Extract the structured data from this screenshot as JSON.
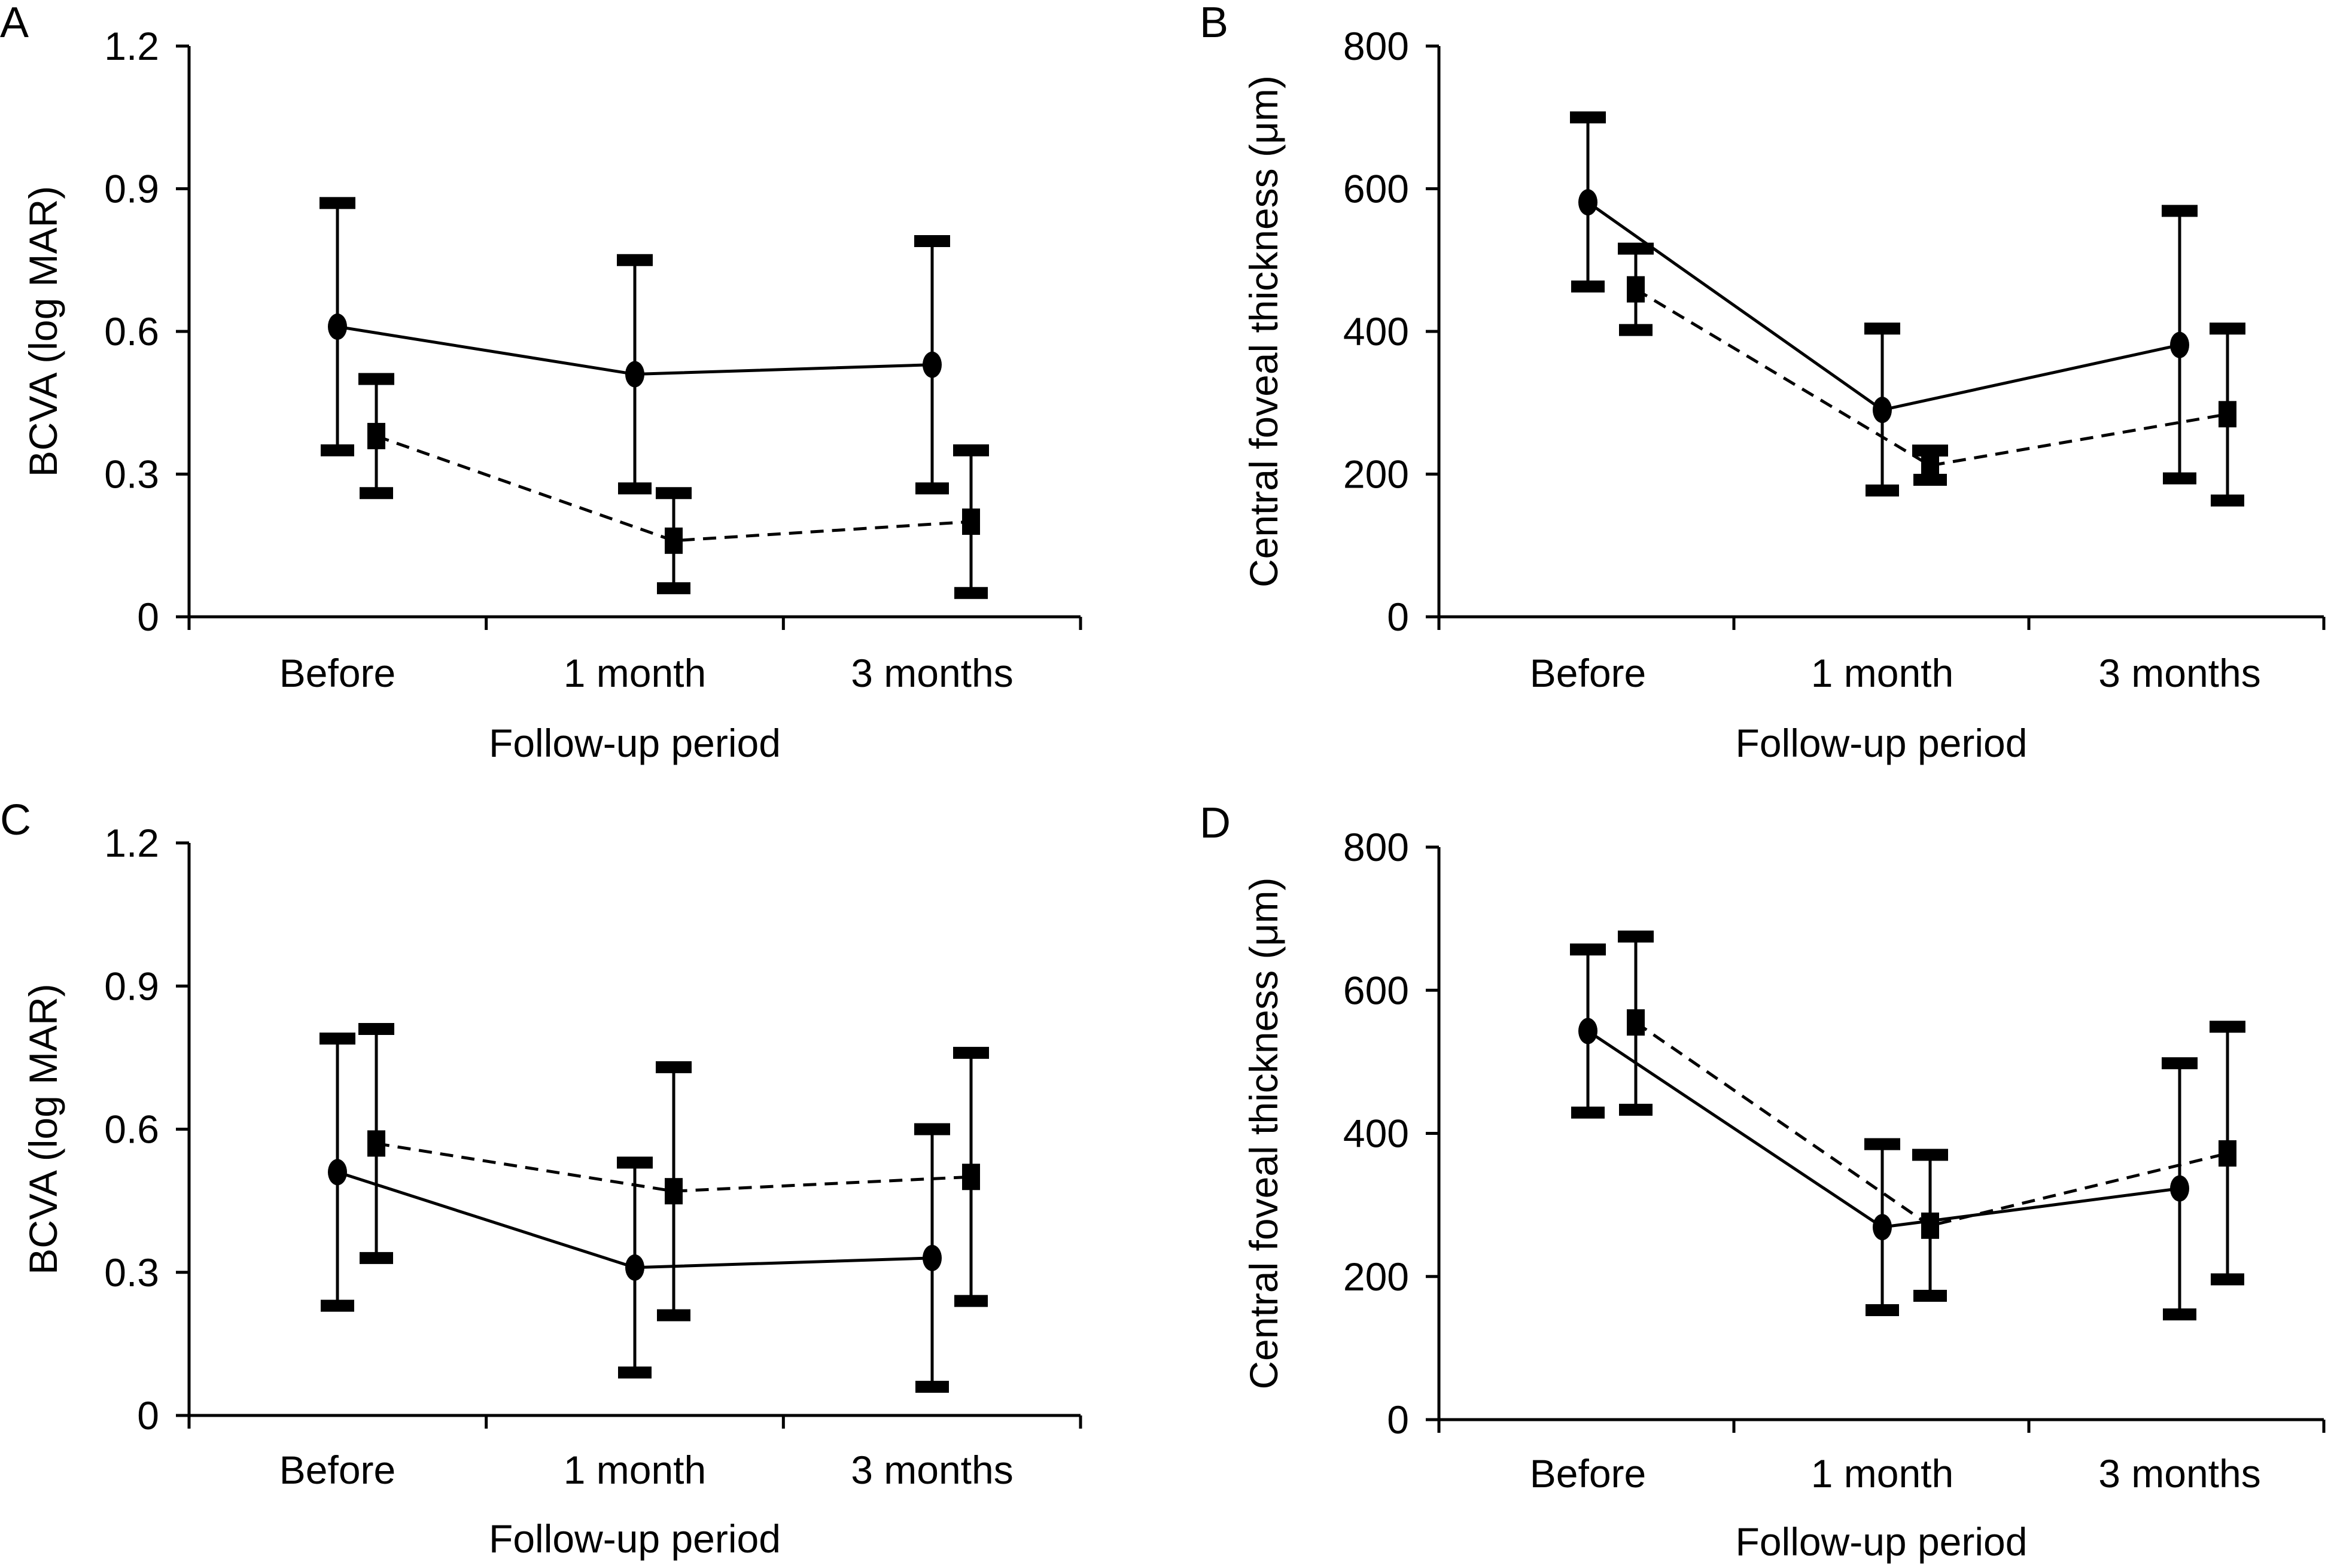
{
  "chart_data": [
    {
      "panel": "A",
      "type": "line",
      "title": "",
      "xlabel": "Follow-up period",
      "ylabel": "BCVA (log MAR)",
      "categories": [
        "Before",
        "1 month",
        "3 months"
      ],
      "ylim": [
        0,
        1.2
      ],
      "yticks": [
        "0",
        "0.3",
        "0.6",
        "0.9",
        "1.2"
      ],
      "ytick_values": [
        0,
        0.3,
        0.6,
        0.9,
        1.2
      ],
      "grid": false,
      "series": [
        {
          "name": "solid-circle",
          "marker": "circle",
          "linestyle": "solid",
          "values": [
            0.61,
            0.51,
            0.53
          ],
          "err_high": [
            0.87,
            0.75,
            0.79
          ],
          "err_low": [
            0.35,
            0.27,
            0.27
          ]
        },
        {
          "name": "dashed-square",
          "marker": "square",
          "linestyle": "dashed",
          "values": [
            0.38,
            0.16,
            0.2
          ],
          "err_high": [
            0.5,
            0.26,
            0.35
          ],
          "err_low": [
            0.26,
            0.06,
            0.05
          ]
        }
      ]
    },
    {
      "panel": "B",
      "type": "line",
      "title": "",
      "xlabel": "Follow-up period",
      "ylabel": "Central foveal thickness (μm)",
      "categories": [
        "Before",
        "1 month",
        "3 months"
      ],
      "ylim": [
        0,
        800
      ],
      "yticks": [
        "0",
        "200",
        "400",
        "600",
        "800"
      ],
      "ytick_values": [
        0,
        200,
        400,
        600,
        800
      ],
      "grid": false,
      "series": [
        {
          "name": "solid-circle",
          "marker": "circle",
          "linestyle": "solid",
          "values": [
            581,
            290,
            381
          ],
          "err_high": [
            700,
            404,
            569
          ],
          "err_low": [
            463,
            177,
            194
          ]
        },
        {
          "name": "dashed-square",
          "marker": "square",
          "linestyle": "dashed",
          "values": [
            459,
            212,
            284
          ],
          "err_high": [
            516,
            233,
            404
          ],
          "err_low": [
            402,
            192,
            163
          ]
        }
      ]
    },
    {
      "panel": "C",
      "type": "line",
      "title": "",
      "xlabel": "Follow-up period",
      "ylabel": "BCVA (log MAR)",
      "categories": [
        "Before",
        "1 month",
        "3 months"
      ],
      "ylim": [
        0,
        1.2
      ],
      "yticks": [
        "0",
        "0.3",
        "0.6",
        "0.9",
        "1.2"
      ],
      "ytick_values": [
        0,
        0.3,
        0.6,
        0.9,
        1.2
      ],
      "grid": false,
      "series": [
        {
          "name": "solid-circle",
          "marker": "circle",
          "linestyle": "solid",
          "values": [
            0.51,
            0.31,
            0.33
          ],
          "err_high": [
            0.79,
            0.53,
            0.6
          ],
          "err_low": [
            0.23,
            0.09,
            0.06
          ]
        },
        {
          "name": "dashed-square",
          "marker": "square",
          "linestyle": "dashed",
          "values": [
            0.57,
            0.47,
            0.5
          ],
          "err_high": [
            0.81,
            0.73,
            0.76
          ],
          "err_low": [
            0.33,
            0.21,
            0.24
          ]
        }
      ]
    },
    {
      "panel": "D",
      "type": "line",
      "title": "",
      "xlabel": "Follow-up period",
      "ylabel": "Central foveal thickness (μm)",
      "categories": [
        "Before",
        "1 month",
        "3 months"
      ],
      "ylim": [
        0,
        800
      ],
      "yticks": [
        "0",
        "200",
        "400",
        "600",
        "800"
      ],
      "ytick_values": [
        0,
        200,
        400,
        600,
        800
      ],
      "grid": false,
      "series": [
        {
          "name": "solid-circle",
          "marker": "circle",
          "linestyle": "solid",
          "values": [
            543,
            269,
            323
          ],
          "err_high": [
            657,
            385,
            498
          ],
          "err_low": [
            429,
            153,
            147
          ]
        },
        {
          "name": "dashed-square",
          "marker": "square",
          "linestyle": "dashed",
          "values": [
            555,
            271,
            372
          ],
          "err_high": [
            675,
            370,
            549
          ],
          "err_low": [
            433,
            173,
            196
          ]
        }
      ]
    }
  ]
}
